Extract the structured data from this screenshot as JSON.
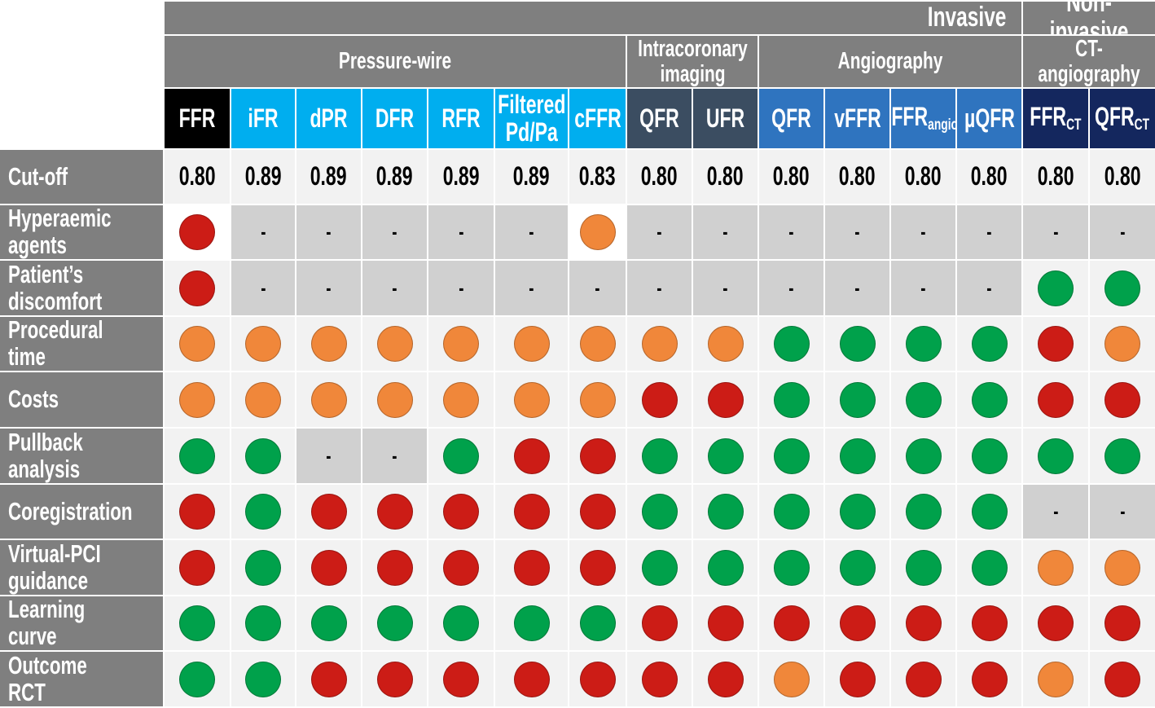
{
  "table": {
    "groups": [
      "Invasive",
      "Non-invasive"
    ],
    "subgroups": [
      "Pressure-wire",
      "Intracoronary imaging",
      "Angiography",
      "CT-angiography"
    ],
    "columns": [
      {
        "label": "FFR",
        "color": "#000000"
      },
      {
        "label": "iFR",
        "color": "#00aeef"
      },
      {
        "label": "dPR",
        "color": "#00aeef"
      },
      {
        "label": "DFR",
        "color": "#00aeef"
      },
      {
        "label": "RFR",
        "color": "#00aeef"
      },
      {
        "label": "Filtered Pd/Pa",
        "color": "#00aeef"
      },
      {
        "label": "cFFR",
        "color": "#00aeef"
      },
      {
        "label": "QFR",
        "color": "#3b4d61"
      },
      {
        "label": "UFR",
        "color": "#3b4d61"
      },
      {
        "label": "QFR",
        "color": "#2f74bf"
      },
      {
        "label": "vFFR",
        "color": "#2f74bf"
      },
      {
        "label": "FFR",
        "sub": "angio",
        "color": "#2f74bf"
      },
      {
        "label": "µQFR",
        "color": "#2f74bf"
      },
      {
        "label": "FFR",
        "sub": "CT",
        "color": "#14275e"
      },
      {
        "label": "QFR",
        "sub": "CT",
        "color": "#14275e"
      }
    ],
    "dot_colors": {
      "red": "#cc1c16",
      "green": "#00a14b",
      "orange": "#f0873a"
    },
    "rows": [
      {
        "label": "Cut-off",
        "cells": [
          "0.80",
          "0.89",
          "0.89",
          "0.89",
          "0.89",
          "0.89",
          "0.83",
          "0.80",
          "0.80",
          "0.80",
          "0.80",
          "0.80",
          "0.80",
          "0.80",
          "0.80"
        ]
      },
      {
        "label": "Hyperaemic agents",
        "cells": [
          "red",
          "-",
          "-",
          "-",
          "-",
          "-",
          "orange",
          "-",
          "-",
          "-",
          "-",
          "-",
          "-",
          "-",
          "-"
        ]
      },
      {
        "label": "Patient’s discomfort",
        "cells": [
          "red",
          "-",
          "-",
          "-",
          "-",
          "-",
          "-",
          "-",
          "-",
          "-",
          "-",
          "-",
          "-",
          "green",
          "green"
        ]
      },
      {
        "label": "Procedural time",
        "cells": [
          "orange",
          "orange",
          "orange",
          "orange",
          "orange",
          "orange",
          "orange",
          "orange",
          "orange",
          "green",
          "green",
          "green",
          "green",
          "red",
          "orange"
        ]
      },
      {
        "label": "Costs",
        "cells": [
          "orange",
          "orange",
          "orange",
          "orange",
          "orange",
          "orange",
          "orange",
          "red",
          "red",
          "green",
          "green",
          "green",
          "green",
          "red",
          "red"
        ]
      },
      {
        "label": "Pullback analysis",
        "cells": [
          "green",
          "green",
          "-",
          "-",
          "green",
          "red",
          "red",
          "green",
          "green",
          "green",
          "green",
          "green",
          "green",
          "green",
          "green"
        ]
      },
      {
        "label": "Coregistration",
        "cells": [
          "red",
          "green",
          "red",
          "red",
          "red",
          "red",
          "red",
          "green",
          "green",
          "green",
          "green",
          "green",
          "green",
          "-",
          "-"
        ]
      },
      {
        "label": "Virtual-PCI guidance",
        "cells": [
          "red",
          "green",
          "red",
          "red",
          "red",
          "red",
          "red",
          "green",
          "green",
          "green",
          "green",
          "green",
          "green",
          "orange",
          "orange"
        ]
      },
      {
        "label": "Learning curve",
        "cells": [
          "green",
          "green",
          "green",
          "green",
          "green",
          "green",
          "green",
          "red",
          "red",
          "red",
          "red",
          "red",
          "red",
          "red",
          "red"
        ]
      },
      {
        "label": "Outcome RCT",
        "cells": [
          "green",
          "green",
          "red",
          "red",
          "red",
          "red",
          "red",
          "red",
          "red",
          "orange",
          "red",
          "red",
          "red",
          "orange",
          "red"
        ]
      }
    ]
  }
}
